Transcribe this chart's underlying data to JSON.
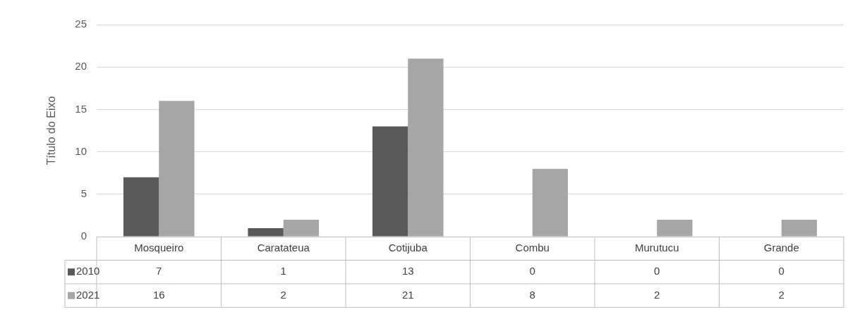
{
  "chart_data": {
    "type": "bar",
    "ylabel": "Título do Eixo",
    "categories": [
      "Mosqueiro",
      "Caratateua",
      "Cotijuba",
      "Combu",
      "Murutucu",
      "Grande"
    ],
    "series": [
      {
        "name": "2010",
        "color": "#595959",
        "values": [
          7,
          1,
          13,
          0,
          0,
          0
        ]
      },
      {
        "name": "2021",
        "color": "#a6a6a6",
        "values": [
          16,
          2,
          21,
          8,
          2,
          2
        ]
      }
    ],
    "ylim": [
      0,
      25
    ],
    "yticks": [
      0,
      5,
      10,
      15,
      20,
      25
    ],
    "grid": "y",
    "data_labels": true,
    "legend": "bottom left"
  }
}
